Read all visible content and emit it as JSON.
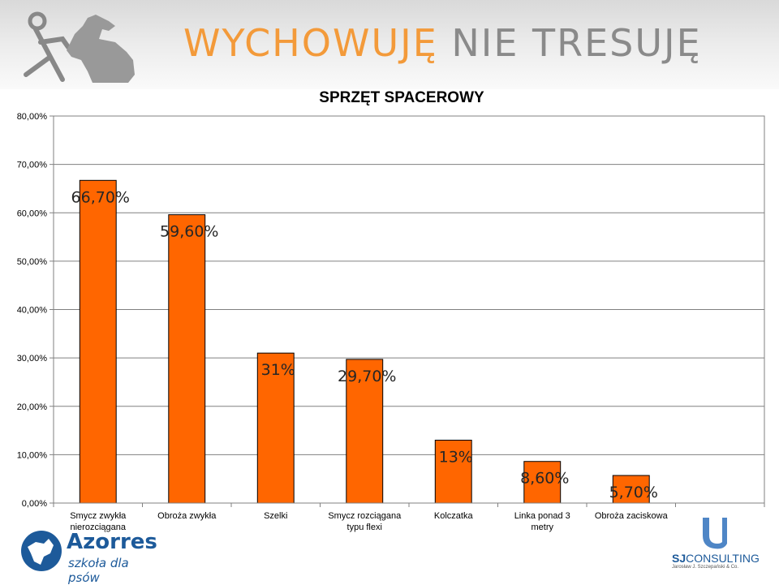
{
  "header": {
    "brand_part1": "WYCHOWUJĘ",
    "brand_part2": "NIE TRESUJĘ"
  },
  "chart_data": {
    "type": "bar",
    "title": "SPRZĘT SPACEROWY",
    "categories": [
      [
        "Smycz zwykła",
        "nierozciągana"
      ],
      [
        "Obroża zwykła"
      ],
      [
        "Szelki"
      ],
      [
        "Smycz rozciągana",
        "typu flexi"
      ],
      [
        "Kolczatka"
      ],
      [
        "Linka ponad 3",
        "metry"
      ],
      [
        "Obroża zaciskowa"
      ]
    ],
    "values": [
      66.7,
      59.6,
      31,
      29.7,
      13,
      8.6,
      5.7
    ],
    "data_labels": [
      "66,70%",
      "59,60%",
      "31%",
      "29,70%",
      "13%",
      "8,60%",
      "5,70%"
    ],
    "ylim": [
      0,
      80
    ],
    "yticks": [
      "0,00%",
      "10,00%",
      "20,00%",
      "30,00%",
      "40,00%",
      "50,00%",
      "60,00%",
      "70,00%",
      "80,00%"
    ],
    "grid": true,
    "bar_color": "#ff6600",
    "xlabel": "",
    "ylabel": ""
  },
  "footer": {
    "left_logo_name": "Azorres",
    "left_logo_subtitle": "szkoła dla psów",
    "right_logo_name_bold": "SJ",
    "right_logo_name_rest": "CONSULTING",
    "right_logo_subtitle": "Jarosław J. Szczepański & Co."
  },
  "colors": {
    "accent_orange": "#f39a3a",
    "brand_gray": "#8a8a8a",
    "brand_blue": "#1d5a9a"
  }
}
